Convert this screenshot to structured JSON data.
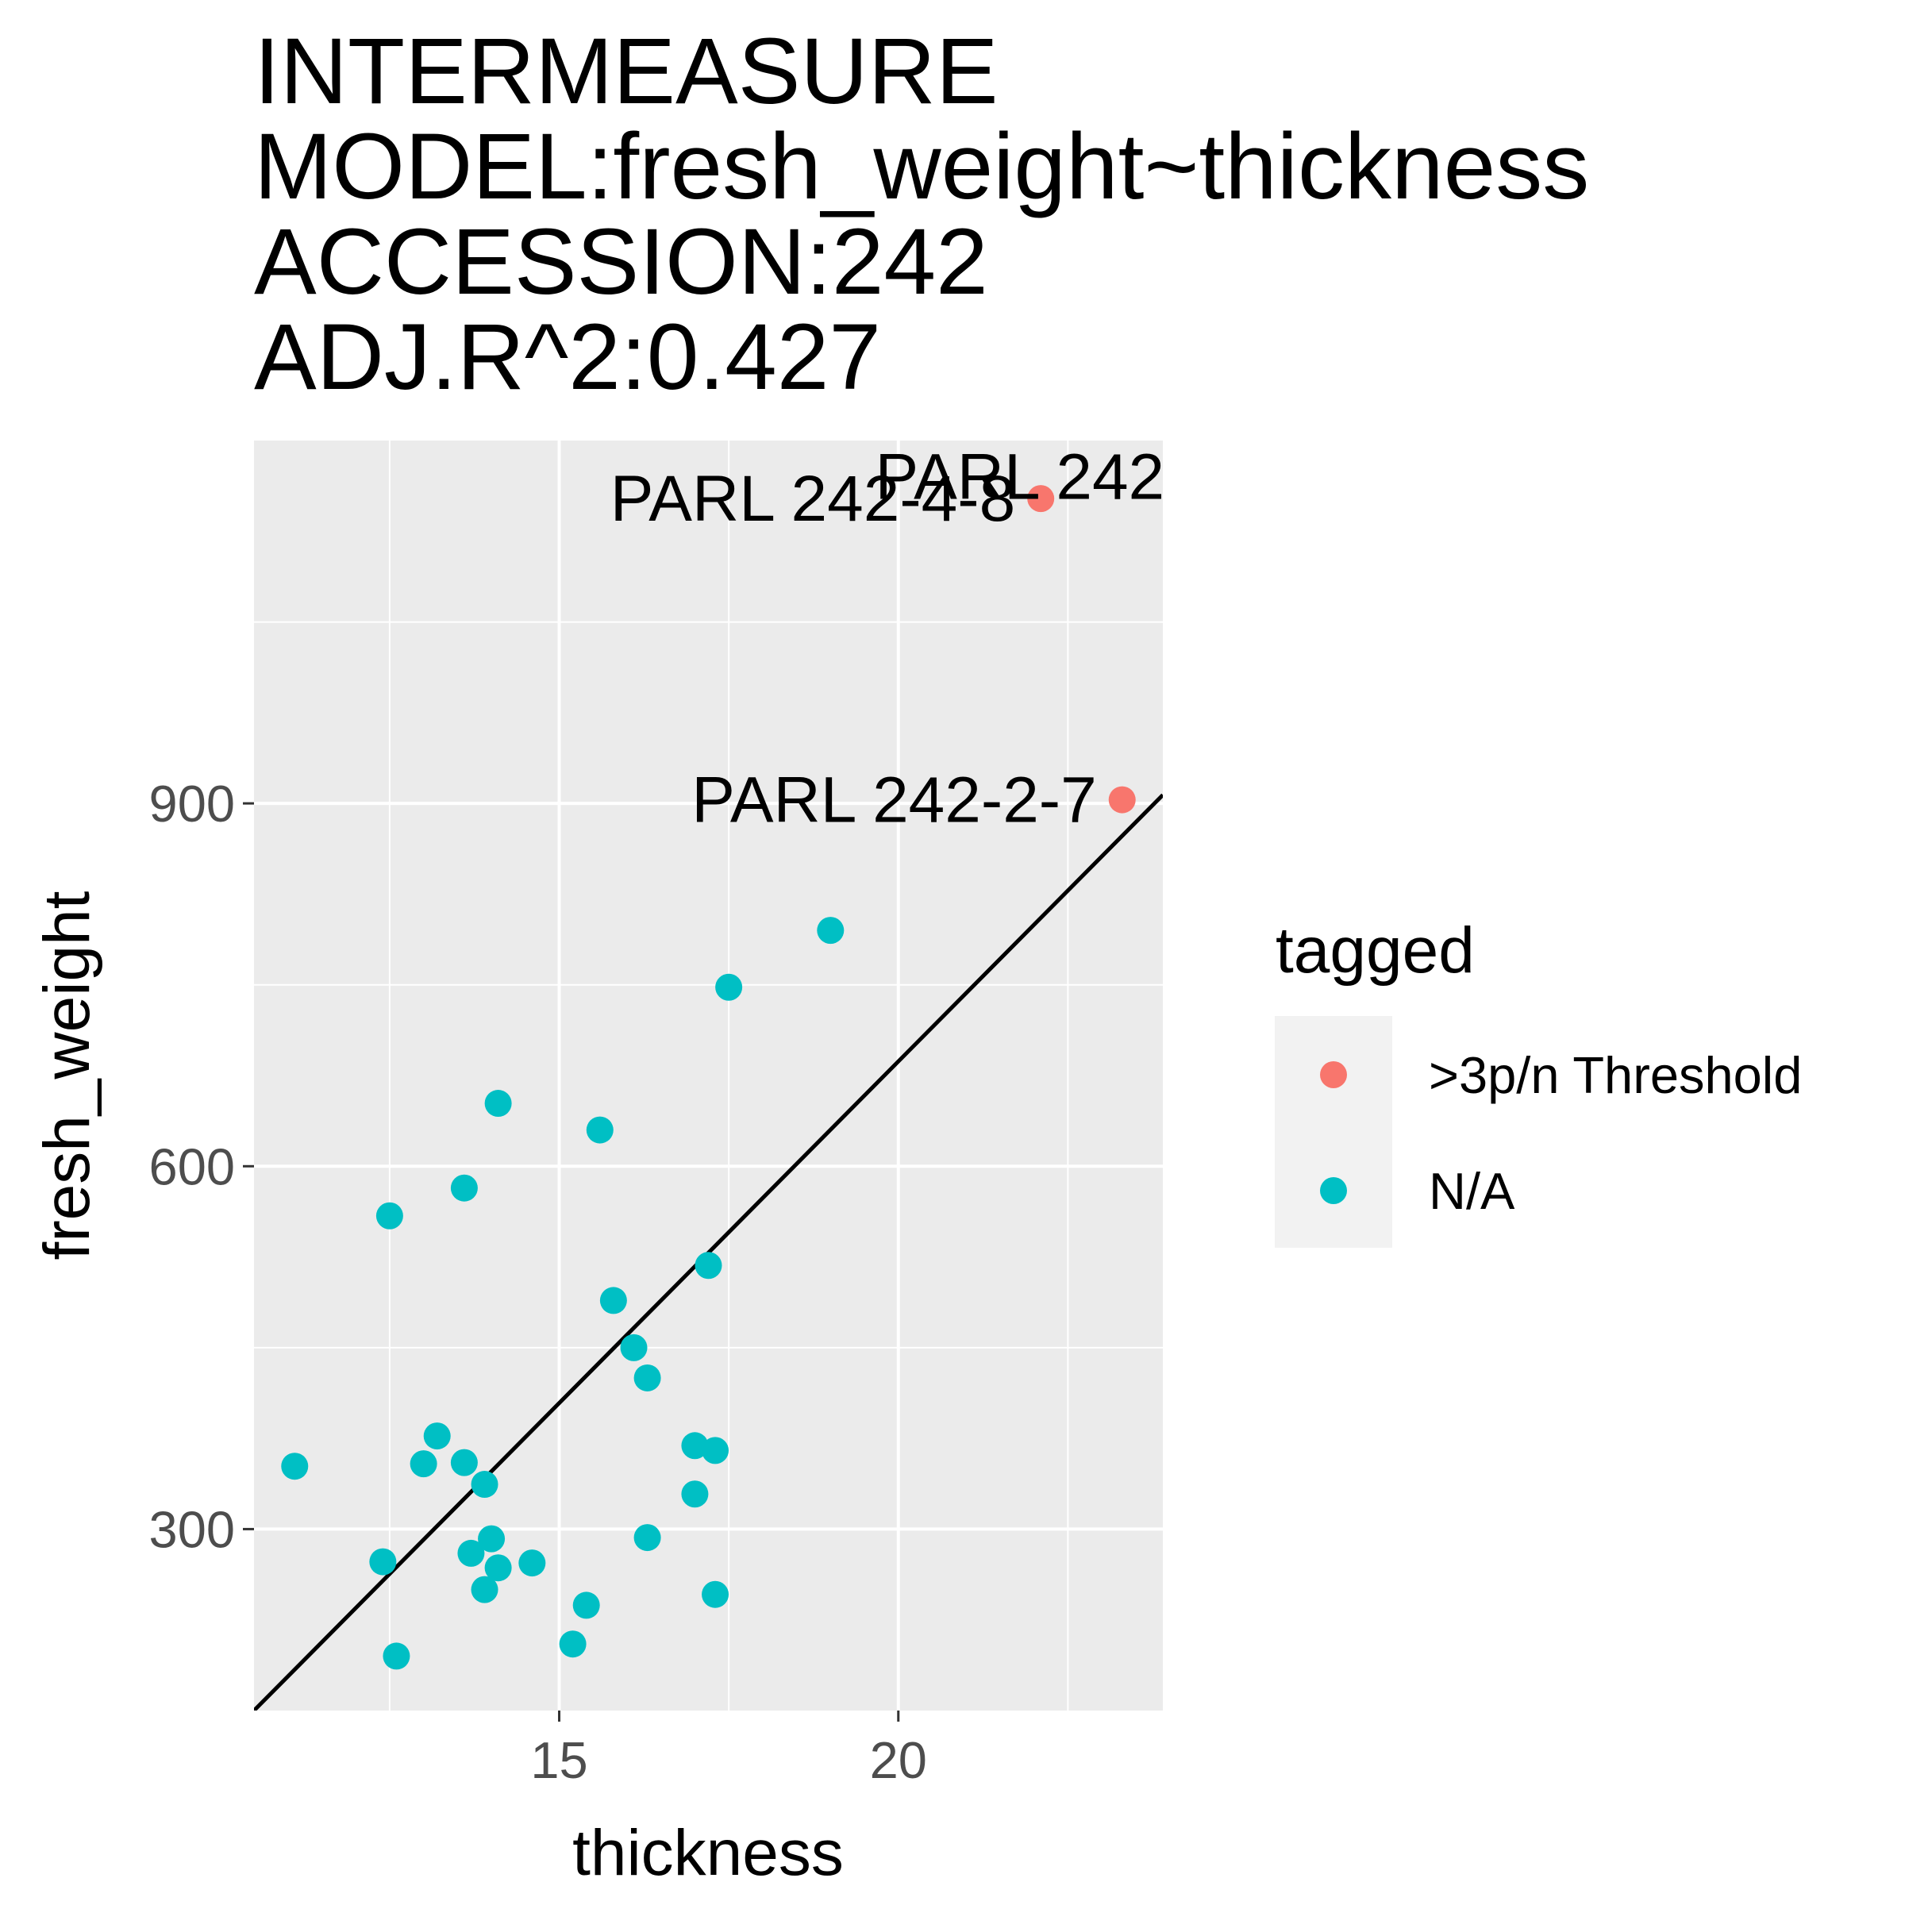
{
  "chart_data": {
    "type": "scatter",
    "title_lines": [
      "INTERMEASURE",
      "MODEL:fresh_weight~thickness",
      "ACCESSION:242",
      "ADJ.R^2:0.427"
    ],
    "xlabel": "thickness",
    "ylabel": "fresh_weight",
    "xlim": [
      10.5,
      23.9
    ],
    "ylim": [
      150,
      1200
    ],
    "x_ticks": [
      15,
      20
    ],
    "x_minor": [
      12.5,
      17.5,
      22.5
    ],
    "y_ticks": [
      300,
      600,
      900
    ],
    "y_minor": [
      450,
      750,
      1050
    ],
    "grid": true,
    "legend": {
      "title": "tagged",
      "position": "right",
      "entries": [
        {
          "label": ">3p/n Threshold",
          "color": "#F8766D"
        },
        {
          "label": "N/A",
          "color": "#00BFC4"
        }
      ]
    },
    "regression_line": {
      "x": [
        10.5,
        23.9
      ],
      "y": [
        150,
        907
      ],
      "color": "#000000"
    },
    "series": [
      {
        "name": ">3p/n Threshold",
        "color": "#F8766D",
        "points": [
          {
            "x": 22.1,
            "y": 1152,
            "label": "PARL 242-4-8"
          },
          {
            "x": 23.3,
            "y": 903,
            "label": "PARL 242-2-7"
          },
          {
            "x": 24.3,
            "y": 1170,
            "label": "PARL 242"
          }
        ]
      },
      {
        "name": "N/A",
        "color": "#00BFC4",
        "points": [
          {
            "x": 11.1,
            "y": 352
          },
          {
            "x": 12.4,
            "y": 273
          },
          {
            "x": 12.5,
            "y": 559
          },
          {
            "x": 12.6,
            "y": 195
          },
          {
            "x": 13.0,
            "y": 354
          },
          {
            "x": 13.2,
            "y": 377
          },
          {
            "x": 13.6,
            "y": 355
          },
          {
            "x": 13.6,
            "y": 582
          },
          {
            "x": 13.7,
            "y": 280
          },
          {
            "x": 13.9,
            "y": 337
          },
          {
            "x": 13.9,
            "y": 250
          },
          {
            "x": 14.0,
            "y": 292
          },
          {
            "x": 14.1,
            "y": 268
          },
          {
            "x": 14.1,
            "y": 652
          },
          {
            "x": 14.6,
            "y": 272
          },
          {
            "x": 15.2,
            "y": 205
          },
          {
            "x": 15.4,
            "y": 237
          },
          {
            "x": 15.6,
            "y": 630
          },
          {
            "x": 15.8,
            "y": 489
          },
          {
            "x": 16.1,
            "y": 450
          },
          {
            "x": 16.3,
            "y": 425
          },
          {
            "x": 16.3,
            "y": 293
          },
          {
            "x": 17.0,
            "y": 369
          },
          {
            "x": 17.0,
            "y": 329
          },
          {
            "x": 17.2,
            "y": 518
          },
          {
            "x": 17.3,
            "y": 365
          },
          {
            "x": 17.3,
            "y": 246
          },
          {
            "x": 17.5,
            "y": 748
          },
          {
            "x": 19.0,
            "y": 795
          }
        ]
      }
    ]
  }
}
